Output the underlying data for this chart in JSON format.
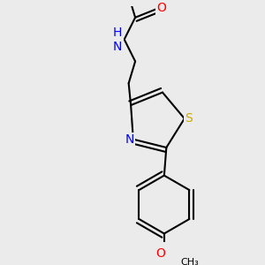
{
  "background_color": "#ebebeb",
  "atom_colors": {
    "C": "#000000",
    "H": "#6fa0a0",
    "N": "#0000ff",
    "O": "#ff0000",
    "S": "#ccaa00"
  },
  "bond_color": "#000000",
  "bond_width": 1.5,
  "font_size_atoms": 10,
  "font_size_small": 8,
  "xlim": [
    -0.6,
    0.6
  ],
  "ylim": [
    -1.3,
    0.85
  ]
}
